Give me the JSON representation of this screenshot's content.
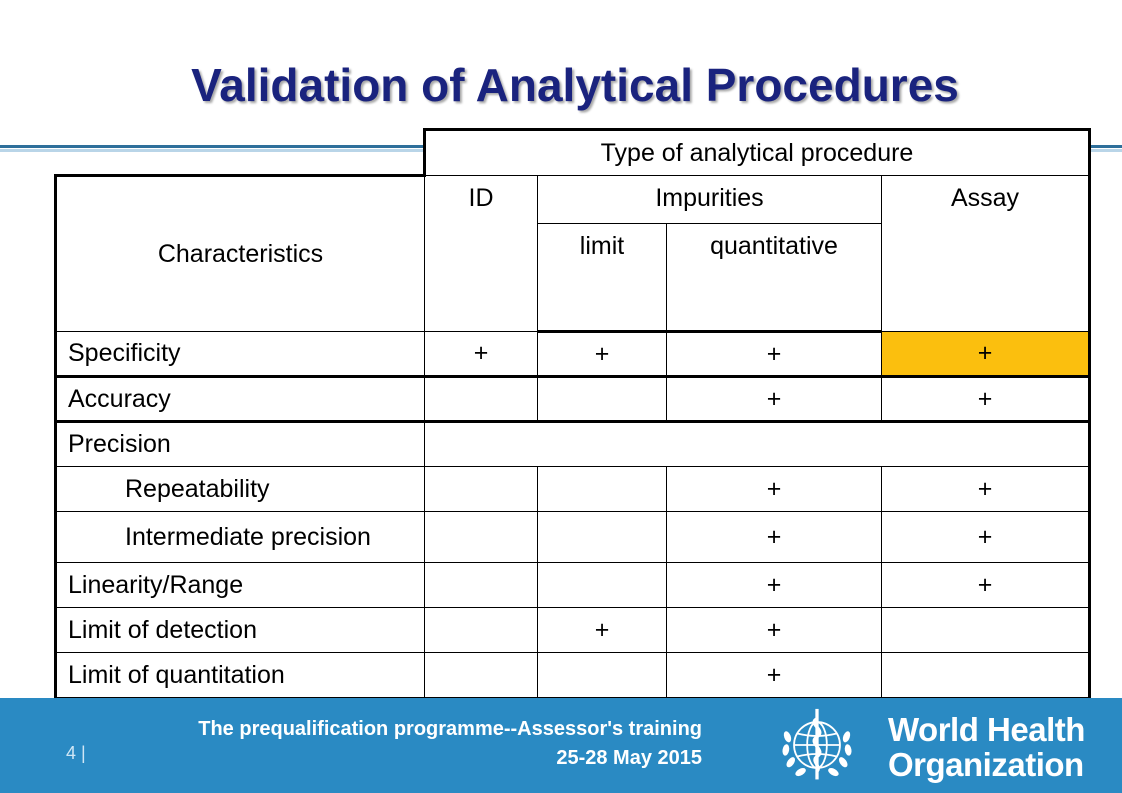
{
  "slide": {
    "title": "Validation of Analytical Procedures"
  },
  "table": {
    "group_header": "Type of analytical procedure",
    "row_header": "Characteristics",
    "columns": {
      "id": "ID",
      "impurities": "Impurities",
      "impurities_limit": "limit",
      "impurities_quantitative": "quantitative",
      "assay": "Assay"
    },
    "rows": [
      {
        "label": "Specificity",
        "id": "+",
        "limit": "+",
        "quantitative": "+",
        "assay": "+"
      },
      {
        "label": "Accuracy",
        "id": "",
        "limit": "",
        "quantitative": "+",
        "assay": "+"
      },
      {
        "label": "Precision"
      },
      {
        "label": "Repeatability",
        "id": "",
        "limit": "",
        "quantitative": "+",
        "assay": "+"
      },
      {
        "label": "Intermediate precision",
        "id": "",
        "limit": "",
        "quantitative": "+",
        "assay": "+"
      },
      {
        "label": "Linearity/Range",
        "id": "",
        "limit": "",
        "quantitative": "+",
        "assay": "+"
      },
      {
        "label": "Limit of detection",
        "id": "",
        "limit": "+",
        "quantitative": "+",
        "assay": ""
      },
      {
        "label": "Limit of quantitation",
        "id": "",
        "limit": "",
        "quantitative": "+",
        "assay": ""
      }
    ],
    "highlight_color": "#fbbf0e"
  },
  "footer": {
    "programme": "The prequalification programme--Assessor's training",
    "dates": "25-28 May 2015",
    "page_number": "4 |",
    "org_line1": "World Health",
    "org_line2": "Organization",
    "emblem_icon": "who-emblem-icon",
    "background_color": "#2a8ac3"
  }
}
